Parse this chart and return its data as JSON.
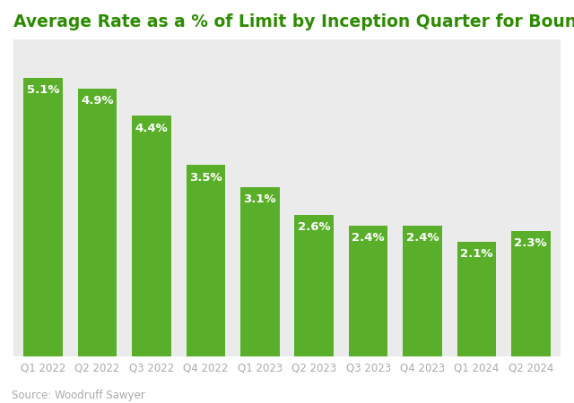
{
  "title": "Average Rate as a % of Limit by Inception Quarter for Bound Policies",
  "categories": [
    "Q1 2022",
    "Q2 2022",
    "Q3 2022",
    "Q4 2022",
    "Q1 2023",
    "Q2 2023",
    "Q3 2023",
    "Q4 2023",
    "Q1 2024",
    "Q2 2024"
  ],
  "values": [
    5.1,
    4.9,
    4.4,
    3.5,
    3.1,
    2.6,
    2.4,
    2.4,
    2.1,
    2.3
  ],
  "labels": [
    "5.1%",
    "4.9%",
    "4.4%",
    "3.5%",
    "3.1%",
    "2.6%",
    "2.4%",
    "2.4%",
    "2.1%",
    "2.3%"
  ],
  "bar_color": "#5aaf2a",
  "title_color": "#2e8b00",
  "outer_bg_color": "#ffffff",
  "plot_bg_color": "#ebebeb",
  "label_color": "#ffffff",
  "source_text": "Source: Woodruff Sawyer",
  "source_color": "#aaaaaa",
  "grid_color": "#d8d8d8",
  "tick_color": "#aaaaaa",
  "ylim": [
    0,
    5.8
  ],
  "title_fontsize": 13.5,
  "label_fontsize": 9.5,
  "tick_fontsize": 8.5,
  "source_fontsize": 8.5,
  "bar_width": 0.72
}
